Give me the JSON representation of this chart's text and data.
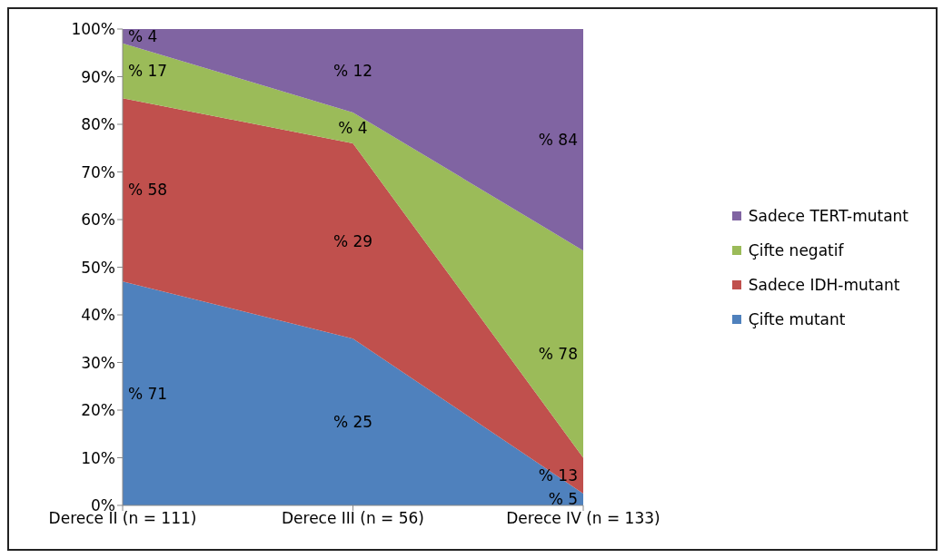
{
  "chart_data": {
    "type": "area",
    "stacked": true,
    "categories": [
      "Derece II (n = 111)",
      "Derece III (n = 56)",
      "Derece IV (n = 133)"
    ],
    "series": [
      {
        "name": "Çifte mutant",
        "color": "#4f81bd",
        "values": [
          47,
          35,
          2.5
        ]
      },
      {
        "name": "Sadece IDH-mutant",
        "color": "#c0504d",
        "values": [
          38.5,
          41,
          7.5
        ]
      },
      {
        "name": "Çifte negatif",
        "color": "#9bbb59",
        "values": [
          11.5,
          6.5,
          43.5
        ]
      },
      {
        "name": "Sadece TERT-mutant",
        "color": "#8064a2",
        "values": [
          3,
          17.5,
          46.5
        ]
      }
    ],
    "annotations": [
      "% 71",
      "% 58",
      "% 17",
      "% 4",
      "% 25",
      "% 29",
      "% 4",
      "% 12",
      "% 5",
      "% 13",
      "% 78",
      "% 84"
    ],
    "grid": false,
    "ylim": [
      0,
      100
    ],
    "yticks": [
      {
        "value": 0,
        "label": "0%"
      },
      {
        "value": 10,
        "label": "10%"
      },
      {
        "value": 20,
        "label": "20%"
      },
      {
        "value": 30,
        "label": "30%"
      },
      {
        "value": 40,
        "label": "40%"
      },
      {
        "value": 50,
        "label": "50%"
      },
      {
        "value": 60,
        "label": "60%"
      },
      {
        "value": 70,
        "label": "70%"
      },
      {
        "value": 80,
        "label": "80%"
      },
      {
        "value": 90,
        "label": "90%"
      },
      {
        "value": 100,
        "label": "100%"
      }
    ],
    "legend": "right"
  }
}
